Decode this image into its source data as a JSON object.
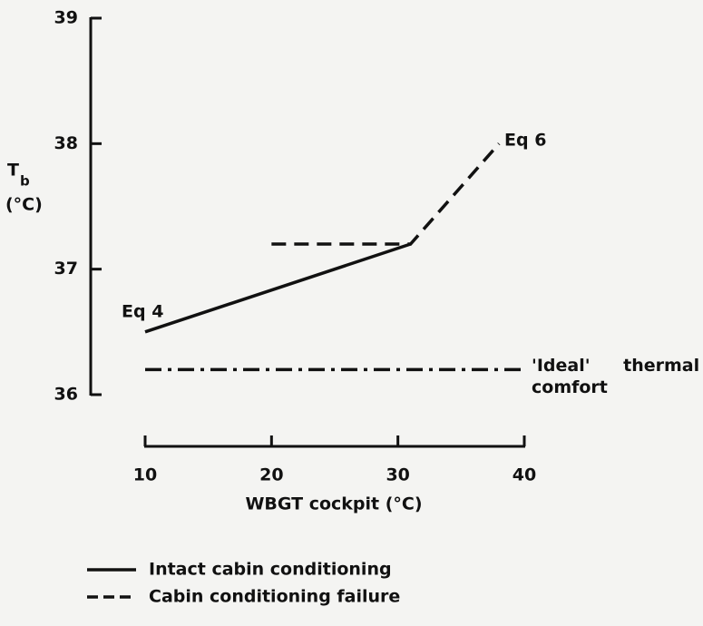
{
  "chart_data": {
    "type": "line",
    "y_label": "T",
    "y_label_sub": "b",
    "y_label_unit": "(°C)",
    "x_label": "WBGT cockpit (°C)",
    "xlim": [
      10,
      40
    ],
    "xticks": [
      10,
      20,
      30,
      40
    ],
    "ylim": [
      36,
      39
    ],
    "yticks": [
      36,
      37,
      38,
      39
    ],
    "series": [
      {
        "name": "Intact cabin conditioning",
        "color": "#111111",
        "style": "solid",
        "legend": true,
        "x": [
          10,
          31
        ],
        "values": [
          36.5,
          37.2
        ]
      },
      {
        "name": "Cabin conditioning failure",
        "color": "#111111",
        "style": "dashed",
        "legend": true,
        "x": [
          20,
          31,
          38
        ],
        "values": [
          37.2,
          37.2,
          38
        ]
      },
      {
        "name": "'Ideal' thermal comfort",
        "color": "#111111",
        "style": "dashdot",
        "legend": false,
        "x": [
          10,
          40
        ],
        "values": [
          36.2,
          36.2
        ]
      }
    ],
    "annotations": [
      "Eq 4",
      "Eq 6"
    ]
  }
}
